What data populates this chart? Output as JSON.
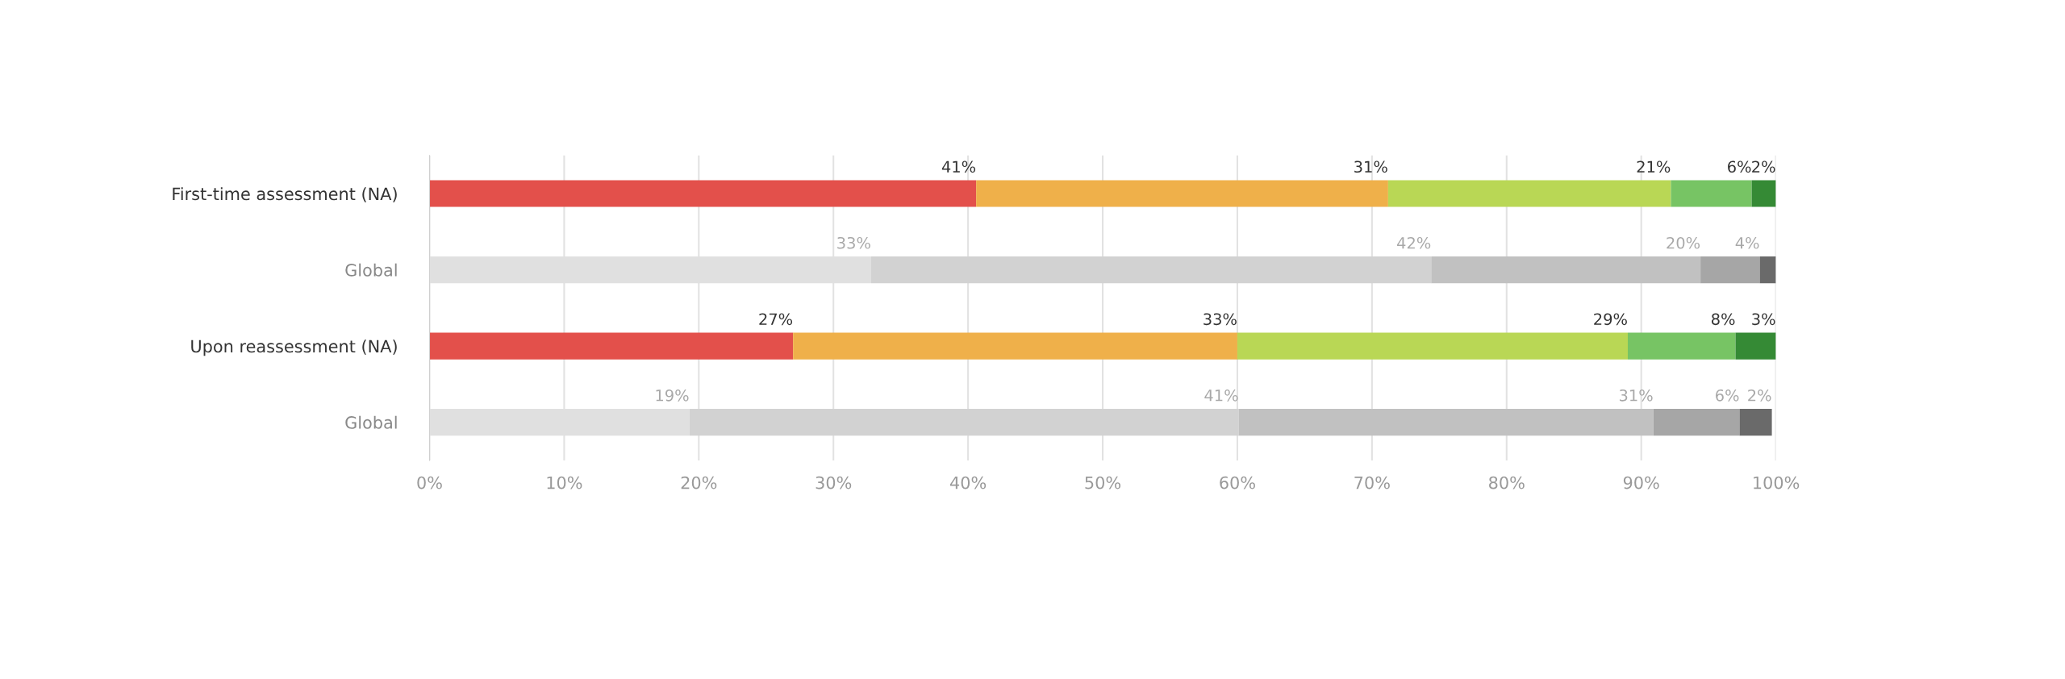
{
  "chart_data": {
    "type": "bar",
    "orientation": "horizontal",
    "stacked": true,
    "categories": [
      "First-time assessment (NA)",
      "Global",
      "Upon reassessment (NA)",
      "Global"
    ],
    "series": [
      {
        "colors": [
          "#e3504b",
          "#e0e0e0",
          "#e3504b",
          "#e0e0e0"
        ],
        "values": [
          40.6,
          32.8,
          27,
          19.3
        ],
        "value_labels": [
          "41%",
          "33%",
          "27%",
          "19%"
        ]
      },
      {
        "colors": [
          "#efb04a",
          "#d2d2d2",
          "#efb04a",
          "#d2d2d2"
        ],
        "values": [
          30.6,
          41.6,
          33,
          40.8
        ],
        "value_labels": [
          "31%",
          "42%",
          "33%",
          "41%"
        ]
      },
      {
        "colors": [
          "#b9d755",
          "#c1c1c1",
          "#b9d755",
          "#c1c1c1"
        ],
        "values": [
          21.0,
          20.0,
          29,
          30.8
        ],
        "value_labels": [
          "21%",
          "20%",
          "29%",
          "31%"
        ]
      },
      {
        "colors": [
          "#77c464",
          "#a6a6a6",
          "#77c464",
          "#a6a6a6"
        ],
        "values": [
          6.0,
          4.4,
          8,
          6.4
        ],
        "value_labels": [
          "6%",
          "4%",
          "8%",
          "6%"
        ]
      },
      {
        "colors": [
          "#358a35",
          "#6a6a6a",
          "#358a35",
          "#6a6a6a"
        ],
        "values": [
          1.8,
          1.2,
          3,
          2.4
        ],
        "value_labels": [
          "2%",
          null,
          "3%",
          "2%"
        ]
      }
    ],
    "xlim": [
      0,
      100
    ],
    "xticks": [
      {
        "value": 0,
        "label": "0%"
      },
      {
        "value": 10,
        "label": "10%"
      },
      {
        "value": 20,
        "label": "20%"
      },
      {
        "value": 30,
        "label": "30%"
      },
      {
        "value": 40,
        "label": "40%"
      },
      {
        "value": 50,
        "label": "50%"
      },
      {
        "value": 60,
        "label": "60%"
      },
      {
        "value": 70,
        "label": "70%"
      },
      {
        "value": 80,
        "label": "80%"
      },
      {
        "value": 90,
        "label": "90%"
      },
      {
        "value": 100,
        "label": "100%"
      }
    ],
    "grid": "x",
    "legend": false
  }
}
